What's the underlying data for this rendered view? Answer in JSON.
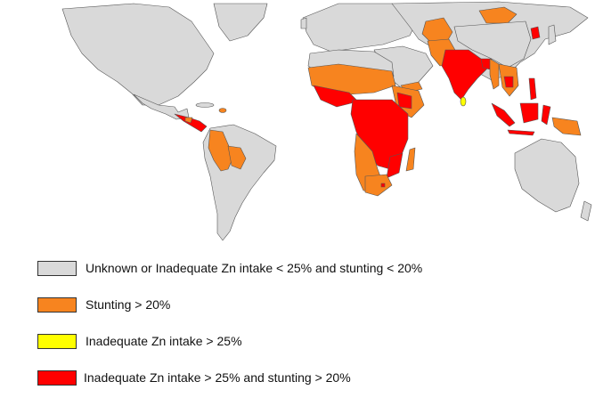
{
  "map": {
    "colors": {
      "unknown": "#d9d9d9",
      "stunting": "#f7841f",
      "zn": "#ffff00",
      "both": "#ff0000",
      "ocean": "#ffffff"
    }
  },
  "legend": {
    "items": [
      {
        "label": "Unknown or Inadequate Zn intake < 25% and stunting < 20%",
        "color": "#d9d9d9"
      },
      {
        "label": "Stunting > 20%",
        "color": "#f7841f"
      },
      {
        "label": "Inadequate Zn intake > 25%",
        "color": "#ffff00"
      },
      {
        "label": "Inadequate Zn intake > 25% and stunting > 20%",
        "color": "#ff0000"
      }
    ]
  }
}
